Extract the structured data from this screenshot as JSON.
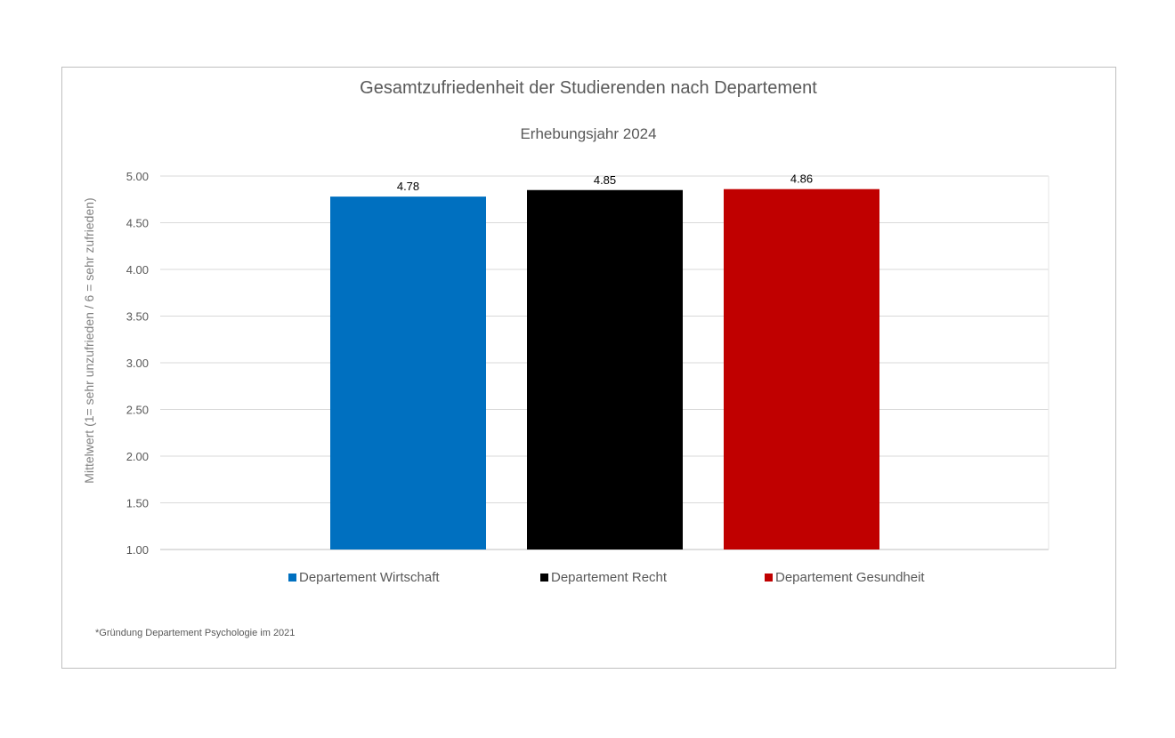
{
  "chart_data": {
    "type": "bar",
    "title": "Gesamtzufriedenheit der Studierenden nach Departement",
    "subtitle": "Erhebungsjahr 2024",
    "ylabel": "Mittelwert (1= sehr unzufrieden / 6 = sehr zufrieden)",
    "xlabel": "",
    "ylim": [
      1.0,
      5.0
    ],
    "yticks": [
      "1.00",
      "1.50",
      "2.00",
      "2.50",
      "3.00",
      "3.50",
      "4.00",
      "4.50",
      "5.00"
    ],
    "grid": true,
    "legend_position": "bottom",
    "series": [
      {
        "name": "Departement Wirtschaft",
        "value": 4.78,
        "label": "4.78",
        "color": "#0070c0"
      },
      {
        "name": "Departement Recht",
        "value": 4.85,
        "label": "4.85",
        "color": "#000000"
      },
      {
        "name": "Departement Gesundheit",
        "value": 4.86,
        "label": "4.86",
        "color": "#c00000"
      }
    ]
  },
  "footnote": "*Gründung Departement Psychologie im 2021"
}
